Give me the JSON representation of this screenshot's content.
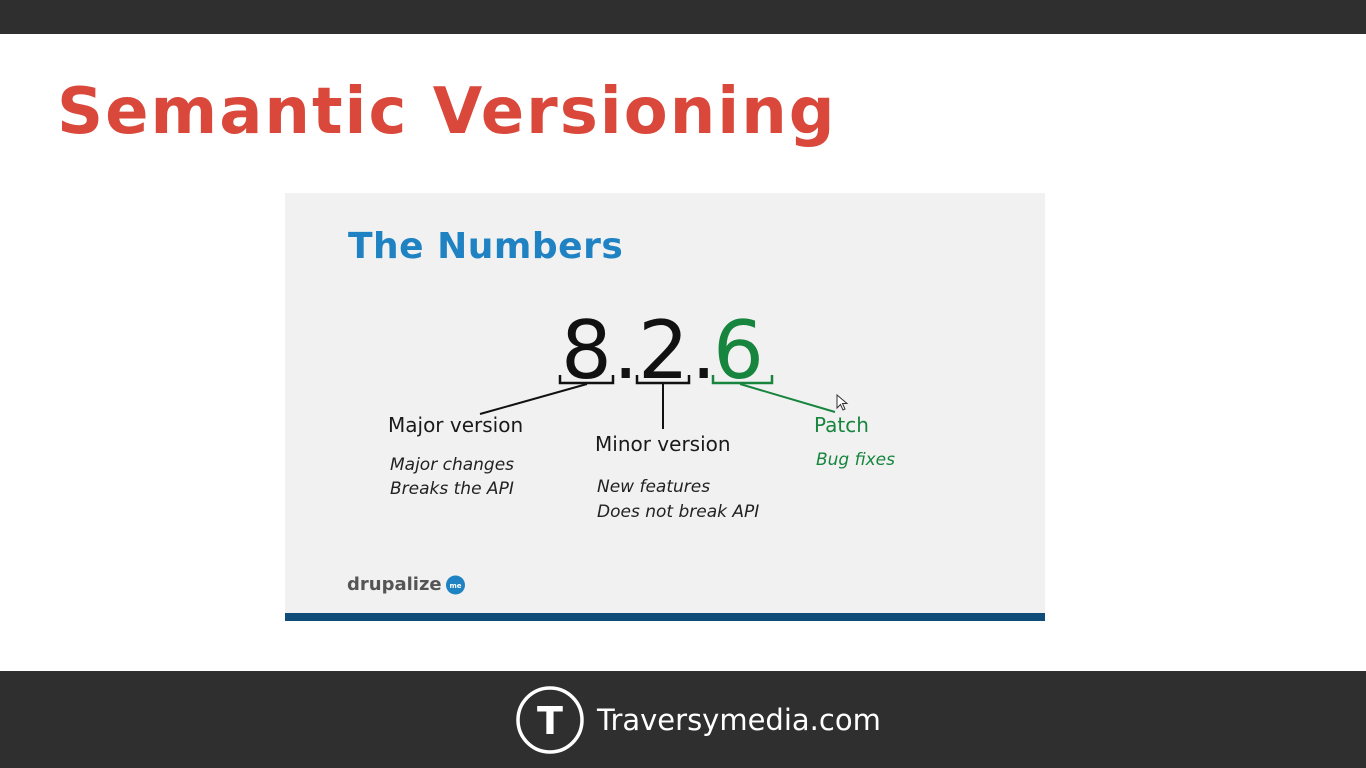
{
  "slide": {
    "title": "Semantic Versioning"
  },
  "embedded_slide": {
    "heading": "The Numbers",
    "version": {
      "major": "8",
      "minor": "2",
      "patch": "6",
      "separator": "."
    },
    "major": {
      "label": "Major version",
      "desc_line1": "Major changes",
      "desc_line2": "Breaks the API"
    },
    "minor": {
      "label": "Minor version",
      "desc_line1": "New features",
      "desc_line2": "Does not break API"
    },
    "patch": {
      "label": "Patch",
      "desc_line1": "Bug fixes"
    },
    "brand": "drupalize",
    "brand_badge": "me"
  },
  "footer": {
    "logo_letter": "T",
    "site": "Traversymedia.com"
  },
  "colors": {
    "title_red": "#d9483b",
    "heading_blue": "#1f82c2",
    "patch_green": "#17853e",
    "rule_navy": "#0f4c7a",
    "bar_dark": "#2f2f2f"
  },
  "icons": {
    "cursor": "mouse-pointer-icon",
    "footer_logo": "traversy-logo-icon"
  }
}
